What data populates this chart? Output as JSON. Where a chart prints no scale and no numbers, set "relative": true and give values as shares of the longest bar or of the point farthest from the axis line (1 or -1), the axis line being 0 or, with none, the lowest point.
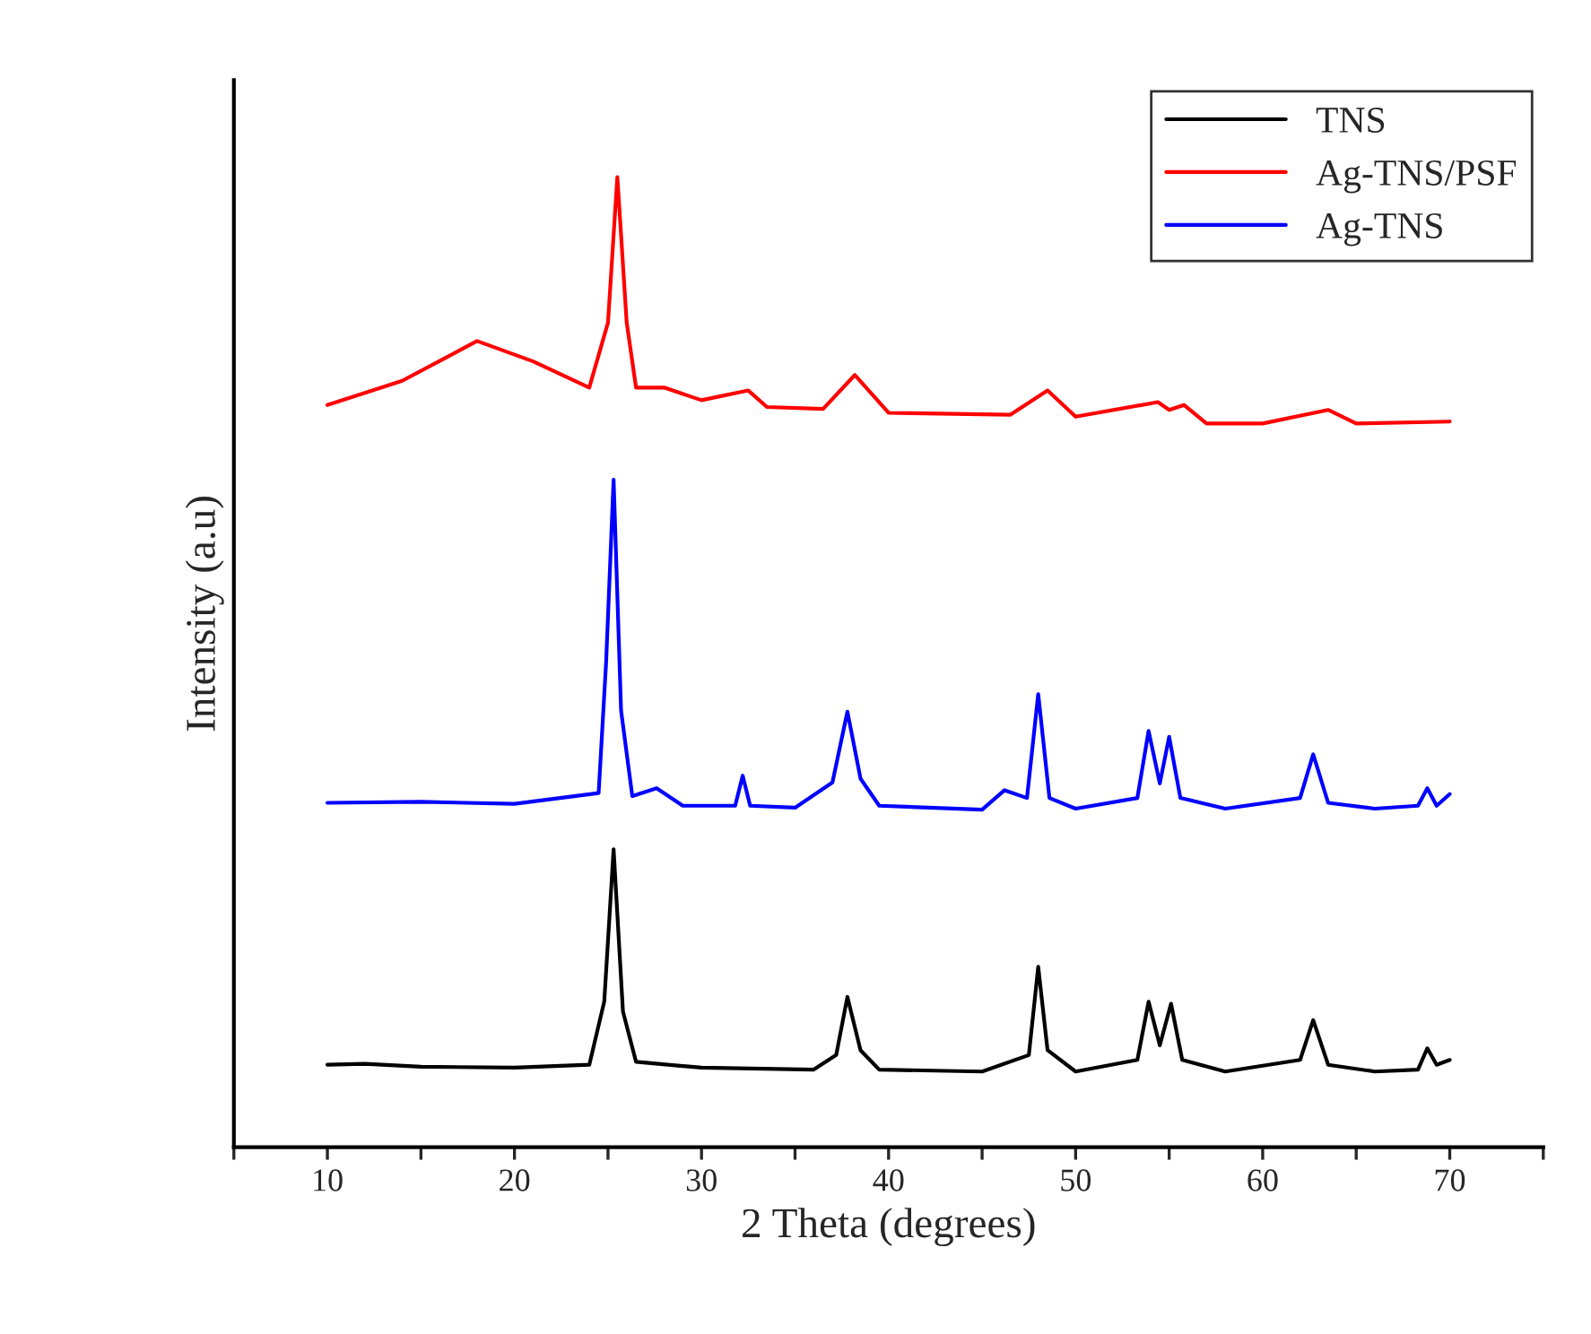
{
  "chart_data": {
    "type": "line",
    "relative": true,
    "xlabel": "2 Theta (degrees)",
    "ylabel": "Intensity (a.u)",
    "xlim": [
      5,
      75
    ],
    "xticks": [
      {
        "value": 5,
        "label": null
      },
      10,
      {
        "value": 15,
        "label": null
      },
      20,
      {
        "value": 25,
        "label": null
      },
      30,
      {
        "value": 35,
        "label": null
      },
      40,
      {
        "value": 45,
        "label": null
      },
      50,
      {
        "value": 55,
        "label": null
      },
      60,
      {
        "value": 65,
        "label": null
      },
      70,
      {
        "value": 75,
        "label": null
      }
    ],
    "tick_labels": "x",
    "legend": "top right",
    "grid": false,
    "series": [
      {
        "name": "TNS",
        "color": "#000000",
        "x": [
          10,
          12,
          15,
          20,
          24,
          24.8,
          25.3,
          25.8,
          26.5,
          30,
          36,
          37.2,
          37.8,
          38.5,
          39.5,
          45,
          47.5,
          48.0,
          48.5,
          50,
          53.3,
          53.9,
          54.5,
          55.1,
          55.7,
          58,
          62.0,
          62.7,
          63.5,
          66,
          68.3,
          68.8,
          69.3,
          70
        ],
        "values": [
          0.085,
          0.086,
          0.083,
          0.082,
          0.085,
          0.15,
          0.307,
          0.14,
          0.088,
          0.082,
          0.08,
          0.095,
          0.155,
          0.1,
          0.08,
          0.078,
          0.095,
          0.186,
          0.1,
          0.078,
          0.09,
          0.15,
          0.105,
          0.148,
          0.09,
          0.078,
          0.09,
          0.131,
          0.085,
          0.078,
          0.08,
          0.102,
          0.085,
          0.09
        ]
      },
      {
        "name": "Ag-TNS/PSF",
        "color": "#ff0000",
        "x": [
          10,
          14,
          18,
          21,
          24,
          25.0,
          25.5,
          26.0,
          26.5,
          28,
          30,
          32.5,
          33.5,
          36.5,
          38.2,
          40,
          46.5,
          48.5,
          50,
          54.4,
          55,
          55.8,
          57,
          60,
          63.5,
          65,
          70
        ],
        "values": [
          0.765,
          0.79,
          0.831,
          0.81,
          0.783,
          0.85,
          1.0,
          0.85,
          0.783,
          0.783,
          0.77,
          0.78,
          0.763,
          0.761,
          0.796,
          0.757,
          0.755,
          0.78,
          0.753,
          0.768,
          0.76,
          0.765,
          0.746,
          0.746,
          0.76,
          0.746,
          0.748
        ]
      },
      {
        "name": "Ag-TNS",
        "color": "#0000ff",
        "x": [
          10,
          15,
          20,
          24.5,
          24.9,
          25.3,
          25.7,
          26.3,
          27.6,
          29,
          31.8,
          32.2,
          32.6,
          35,
          37.0,
          37.8,
          38.5,
          39.5,
          45,
          46.2,
          47.4,
          48.0,
          48.6,
          50,
          53.3,
          53.9,
          54.5,
          55.0,
          55.6,
          58,
          62.0,
          62.7,
          63.5,
          66,
          68.3,
          68.8,
          69.3,
          70
        ],
        "values": [
          0.355,
          0.356,
          0.354,
          0.365,
          0.5,
          0.688,
          0.45,
          0.362,
          0.37,
          0.352,
          0.352,
          0.383,
          0.352,
          0.35,
          0.376,
          0.449,
          0.38,
          0.352,
          0.348,
          0.368,
          0.36,
          0.467,
          0.36,
          0.349,
          0.36,
          0.429,
          0.375,
          0.423,
          0.36,
          0.349,
          0.36,
          0.405,
          0.355,
          0.349,
          0.352,
          0.37,
          0.352,
          0.364
        ]
      }
    ]
  }
}
